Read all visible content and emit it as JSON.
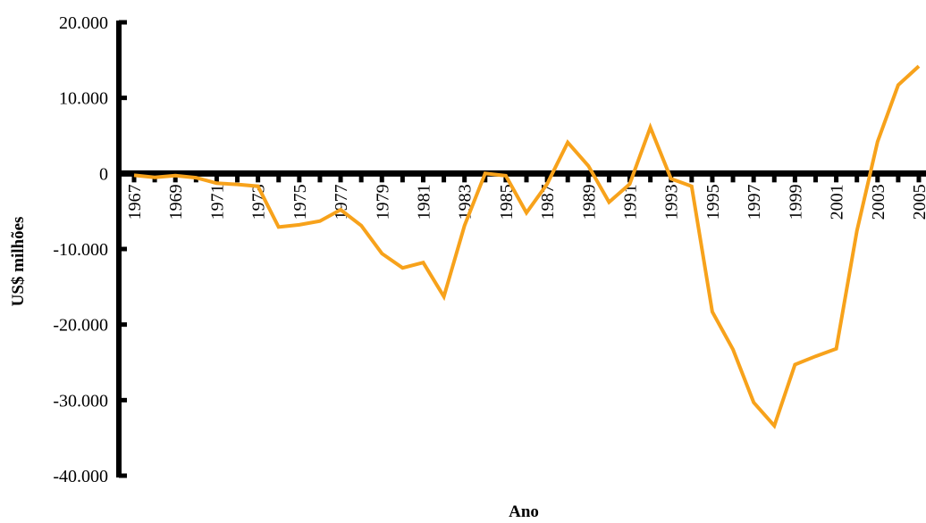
{
  "chart_data": {
    "type": "line",
    "title": "",
    "xlabel": "Ano",
    "ylabel": "US$ milhões",
    "ylim": [
      -40000,
      20000
    ],
    "y_ticks": [
      20000,
      10000,
      0,
      -10000,
      -20000,
      -30000,
      -40000
    ],
    "y_tick_labels": [
      "20.000",
      "10.000",
      "0",
      "-10.000",
      "-20.000",
      "-30.000",
      "-40.000"
    ],
    "x_tick_labels": [
      "1967",
      "1969",
      "1971",
      "1973",
      "1975",
      "1977",
      "1979",
      "1981",
      "1983",
      "1985",
      "1987",
      "1989",
      "1991",
      "1993",
      "1995",
      "1997",
      "1999",
      "2001",
      "2003",
      "2005"
    ],
    "x": [
      1967,
      1968,
      1969,
      1970,
      1971,
      1972,
      1973,
      1974,
      1975,
      1976,
      1977,
      1978,
      1979,
      1980,
      1981,
      1982,
      1983,
      1984,
      1985,
      1986,
      1987,
      1988,
      1989,
      1990,
      1991,
      1992,
      1993,
      1994,
      1995,
      1996,
      1997,
      1998,
      1999,
      2000,
      2001,
      2002,
      2003,
      2004,
      2005
    ],
    "series": [
      {
        "values": [
          -240,
          -510,
          -280,
          -560,
          -1300,
          -1450,
          -1700,
          -7100,
          -6800,
          -6300,
          -4800,
          -6900,
          -10600,
          -12500,
          -11800,
          -16300,
          -6900,
          0,
          -300,
          -5200,
          -1400,
          4100,
          1000,
          -3800,
          -1400,
          6100,
          -700,
          -1700,
          -18300,
          -23300,
          -30300,
          -33400,
          -25300,
          -24200,
          -23200,
          -7600,
          4200,
          11700,
          14200
        ]
      }
    ],
    "colors": {
      "line": "#f7a21b",
      "axis": "#000000"
    },
    "grid": false,
    "legend": "none"
  }
}
